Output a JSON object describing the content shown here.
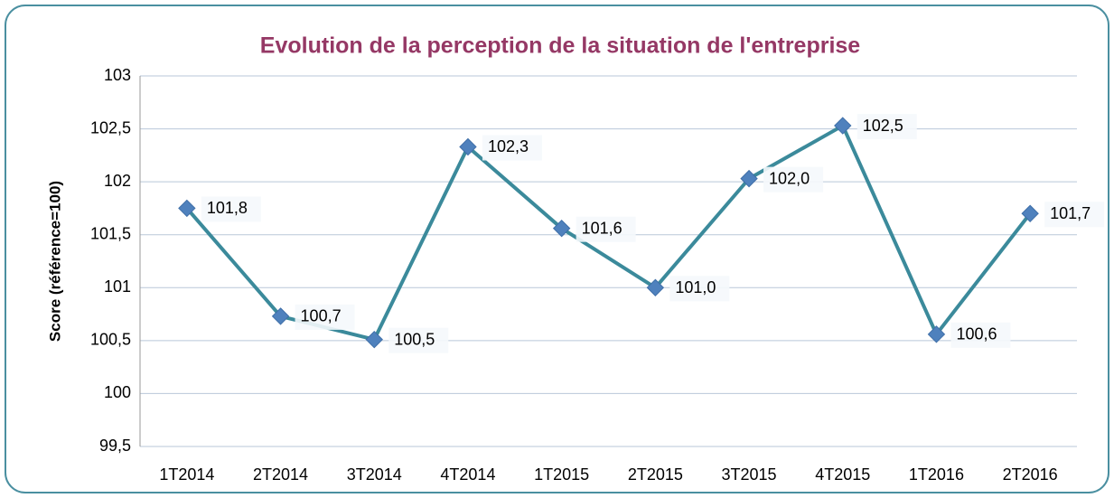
{
  "chart_data": {
    "type": "line",
    "title": "Evolution de la perception de la situation de l'entreprise",
    "y_label": "Score (référence=100)",
    "categories": [
      "1T2014",
      "2T2014",
      "3T2014",
      "4T2014",
      "1T2015",
      "2T2015",
      "3T2015",
      "4T2015",
      "1T2016",
      "2T2016"
    ],
    "series": [
      {
        "color": "#3b8a9b",
        "marker_color": "#4f81bd",
        "values": [
          101.75,
          100.73,
          100.51,
          102.33,
          101.56,
          101.0,
          102.03,
          102.53,
          100.56,
          101.7
        ],
        "value_labels": [
          "101,8",
          "100,7",
          "100,5",
          "102,3",
          "101,6",
          "101,0",
          "102,0",
          "102,5",
          "100,6",
          "101,7"
        ]
      }
    ],
    "ylim": [
      99.5,
      103
    ],
    "yticks": [
      {
        "value": 99.5,
        "label": "99,5"
      },
      100,
      {
        "value": 100.5,
        "label": "100,5"
      },
      101,
      {
        "value": 101.5,
        "label": "101,5"
      },
      102,
      {
        "value": 102.5,
        "label": "102,5"
      },
      103
    ],
    "grid": true
  }
}
